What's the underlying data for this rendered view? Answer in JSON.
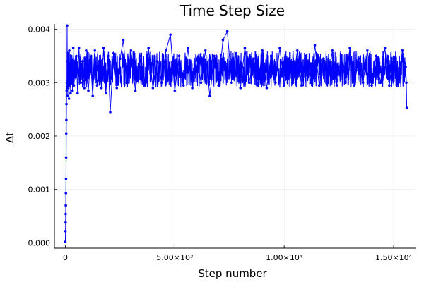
{
  "chart_data": {
    "type": "scatter",
    "title": "Time Step Size",
    "xlabel": "Step number",
    "ylabel": "Δt",
    "xlim": [
      -500,
      16000
    ],
    "ylim": [
      -0.0001,
      0.0041
    ],
    "grid": true,
    "legend": "none",
    "x_ticks": [
      {
        "value": 0,
        "label": "0"
      },
      {
        "value": 5000,
        "label": "5.00×10³"
      },
      {
        "value": 10000,
        "label": "1.00×10⁴"
      },
      {
        "value": 15000,
        "label": "1.50×10⁴"
      }
    ],
    "y_ticks": [
      {
        "value": 0.0,
        "label": "0.000"
      },
      {
        "value": 0.001,
        "label": "0.001"
      },
      {
        "value": 0.002,
        "label": "0.002"
      },
      {
        "value": 0.003,
        "label": "0.003"
      },
      {
        "value": 0.004,
        "label": "0.004"
      }
    ],
    "series": [
      {
        "color": "#0000ff",
        "marker": "circle",
        "line": true,
        "x": [
          0,
          5,
          10,
          15,
          20,
          25,
          30,
          35,
          40,
          45,
          50,
          60,
          70,
          80,
          90,
          100,
          110,
          120,
          135,
          150,
          165,
          180,
          200,
          220,
          240,
          260,
          280,
          300,
          330,
          360,
          390,
          420,
          460,
          500,
          560,
          620,
          700,
          780,
          860,
          950,
          1050,
          1150,
          1250,
          1350,
          1450,
          1550,
          1650,
          1750,
          1850,
          1950,
          2050,
          2200,
          2350,
          2500,
          2650,
          2800,
          3000,
          3200,
          3400,
          3600,
          3800,
          4000,
          4200,
          4400,
          4600,
          4800,
          5000,
          5200,
          5400,
          5600,
          5800,
          6000,
          6200,
          6400,
          6600,
          6800,
          7000,
          7200,
          7400,
          7600,
          7800,
          8000,
          8200,
          8400,
          8600,
          8800,
          9000,
          9200,
          9400,
          9600,
          9800,
          10000,
          10200,
          10400,
          10600,
          10800,
          11000,
          11200,
          11400,
          11600,
          11800,
          12000,
          12200,
          12400,
          12600,
          12800,
          13000,
          13200,
          13400,
          13600,
          13800,
          14000,
          14200,
          14400,
          14600,
          14800,
          15000,
          15200,
          15400,
          15550,
          15580,
          15600
        ],
        "y": [
          2e-05,
          0.00022,
          0.00038,
          0.00054,
          0.0007,
          0.00093,
          0.0012,
          0.0016,
          0.00205,
          0.0023,
          0.0026,
          0.00285,
          0.003,
          0.00407,
          0.0029,
          0.0034,
          0.00275,
          0.00355,
          0.0029,
          0.00345,
          0.0027,
          0.0036,
          0.00295,
          0.00335,
          0.0028,
          0.0035,
          0.003,
          0.0033,
          0.00285,
          0.00365,
          0.00295,
          0.0034,
          0.0031,
          0.0035,
          0.0028,
          0.00365,
          0.003,
          0.0034,
          0.0029,
          0.0036,
          0.00285,
          0.00345,
          0.00275,
          0.0036,
          0.00295,
          0.0034,
          0.0029,
          0.00365,
          0.0028,
          0.0035,
          0.00245,
          0.00355,
          0.0029,
          0.00345,
          0.0038,
          0.003,
          0.0036,
          0.00285,
          0.0035,
          0.00295,
          0.00365,
          0.0029,
          0.0034,
          0.003,
          0.0036,
          0.0039,
          0.00285,
          0.0035,
          0.00295,
          0.00365,
          0.0029,
          0.00345,
          0.003,
          0.0036,
          0.00275,
          0.0035,
          0.00295,
          0.0038,
          0.00396,
          0.003,
          0.00355,
          0.0029,
          0.00365,
          0.003,
          0.00345,
          0.00295,
          0.0036,
          0.0029,
          0.0035,
          0.003,
          0.00365,
          0.00295,
          0.00345,
          0.003,
          0.0036,
          0.00295,
          0.0035,
          0.003,
          0.0037,
          0.00295,
          0.00345,
          0.003,
          0.0036,
          0.00295,
          0.0035,
          0.003,
          0.00365,
          0.00295,
          0.00345,
          0.003,
          0.0036,
          0.00295,
          0.0035,
          0.003,
          0.00365,
          0.00295,
          0.00345,
          0.003,
          0.0036,
          0.0033,
          0.003,
          0.00253
        ]
      }
    ]
  }
}
